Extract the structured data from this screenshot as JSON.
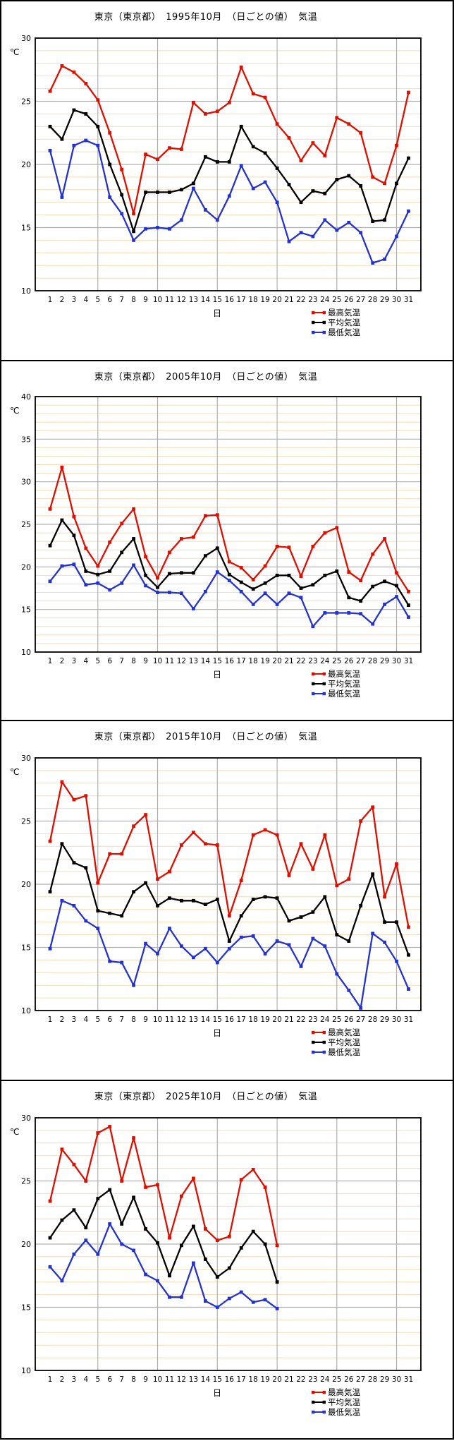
{
  "page": {
    "unit_label": "℃",
    "x_axis_label": "日"
  },
  "colors": {
    "max_temp": "#dd0f00",
    "avg_temp": "#000000",
    "min_temp": "#2333cc",
    "grid_minor": "#f7dcb6",
    "grid_major": "#b0b0b0",
    "plot_border": "#000000"
  },
  "legend": [
    {
      "label": "最高気温",
      "color": "#dd0f00"
    },
    {
      "label": "平均気温",
      "color": "#000000"
    },
    {
      "label": "最低気温",
      "color": "#2333cc"
    }
  ],
  "chart_data": [
    {
      "type": "line",
      "title": "東京（東京都）　1995年10月　（日ごとの値）　気温",
      "xlabel": "日",
      "ylabel": "℃",
      "ylim": [
        10,
        30
      ],
      "yticks": [
        10,
        15,
        20,
        25,
        30
      ],
      "x_start": 1,
      "x_tick_count": 31,
      "grid_v_days": [
        5,
        10,
        15,
        20,
        25,
        30
      ],
      "series": [
        {
          "name": "最高気温",
          "values": [
            25.8,
            27.8,
            27.3,
            26.4,
            25.1,
            22.5,
            19.6,
            16.1,
            20.8,
            20.4,
            21.3,
            21.2,
            24.9,
            24.0,
            24.2,
            24.9,
            27.7,
            25.6,
            25.3,
            23.2,
            22.1,
            20.3,
            21.7,
            20.7,
            23.7,
            23.2,
            22.5,
            19.0,
            18.5,
            21.5,
            25.7
          ]
        },
        {
          "name": "平均気温",
          "values": [
            23.0,
            22.0,
            24.3,
            24.0,
            23.0,
            20.0,
            17.6,
            14.7,
            17.8,
            17.8,
            17.8,
            18.0,
            18.5,
            20.6,
            20.2,
            20.2,
            23.0,
            21.4,
            20.9,
            19.7,
            18.4,
            17.0,
            17.9,
            17.7,
            18.8,
            19.1,
            18.3,
            15.5,
            15.6,
            18.5,
            20.5
          ]
        },
        {
          "name": "最低気温",
          "values": [
            21.1,
            17.4,
            21.5,
            21.9,
            21.5,
            17.4,
            16.1,
            14.0,
            14.9,
            15.0,
            14.9,
            15.6,
            18.1,
            16.4,
            15.6,
            17.5,
            19.9,
            18.1,
            18.6,
            17.0,
            13.9,
            14.6,
            14.3,
            15.6,
            14.8,
            15.4,
            14.6,
            12.2,
            12.5,
            14.3,
            16.3
          ]
        }
      ]
    },
    {
      "type": "line",
      "title": "東京（東京都）　2005年10月　（日ごとの値）　気温",
      "xlabel": "日",
      "ylabel": "℃",
      "ylim": [
        10,
        40
      ],
      "yticks": [
        10,
        15,
        20,
        25,
        30,
        35,
        40
      ],
      "x_start": 1,
      "x_tick_count": 31,
      "grid_v_days": [
        5,
        10,
        15,
        20,
        25,
        30
      ],
      "series": [
        {
          "name": "最高気温",
          "values": [
            26.8,
            31.7,
            25.9,
            22.2,
            20.1,
            22.9,
            25.1,
            26.8,
            21.2,
            18.7,
            21.7,
            23.3,
            23.5,
            26.0,
            26.1,
            20.6,
            19.9,
            18.5,
            20.1,
            22.4,
            22.3,
            18.9,
            22.4,
            24.0,
            24.6,
            19.4,
            18.4,
            21.5,
            23.3,
            19.3,
            17.1
          ]
        },
        {
          "name": "平均気温",
          "values": [
            22.5,
            25.5,
            23.7,
            19.5,
            19.1,
            19.5,
            21.7,
            23.3,
            19.0,
            17.6,
            19.2,
            19.3,
            19.3,
            21.3,
            22.2,
            19.1,
            18.2,
            17.4,
            18.1,
            19.0,
            19.0,
            17.5,
            17.9,
            19.0,
            19.5,
            16.4,
            16.0,
            17.7,
            18.3,
            17.8,
            15.5
          ]
        },
        {
          "name": "最低気温",
          "values": [
            18.3,
            20.1,
            20.3,
            17.9,
            18.1,
            17.3,
            18.1,
            20.2,
            17.8,
            17.0,
            17.0,
            16.9,
            15.1,
            17.1,
            19.4,
            18.4,
            17.1,
            15.6,
            16.9,
            15.6,
            16.9,
            16.4,
            13.0,
            14.6,
            14.6,
            14.6,
            14.5,
            13.3,
            15.6,
            16.5,
            14.1
          ]
        }
      ]
    },
    {
      "type": "line",
      "title": "東京（東京都）　2015年10月　（日ごとの値）　気温",
      "xlabel": "日",
      "ylabel": "℃",
      "ylim": [
        10,
        30
      ],
      "yticks": [
        10,
        15,
        20,
        25,
        30
      ],
      "x_start": 1,
      "x_tick_count": 31,
      "grid_v_days": [
        5,
        10,
        15,
        20,
        25,
        30
      ],
      "series": [
        {
          "name": "最高気温",
          "values": [
            23.4,
            28.1,
            26.7,
            27.0,
            20.1,
            22.4,
            22.4,
            24.6,
            25.5,
            20.4,
            21.0,
            23.1,
            24.1,
            23.2,
            23.1,
            17.5,
            20.3,
            23.9,
            24.3,
            23.9,
            20.7,
            23.2,
            21.2,
            23.9,
            19.9,
            20.4,
            25.0,
            26.1,
            19.0,
            21.6,
            16.6
          ]
        },
        {
          "name": "平均気温",
          "values": [
            19.4,
            23.2,
            21.7,
            21.3,
            17.9,
            17.7,
            17.5,
            19.4,
            20.1,
            18.3,
            18.9,
            18.7,
            18.7,
            18.4,
            18.8,
            15.5,
            17.5,
            18.8,
            19.0,
            18.9,
            17.1,
            17.4,
            17.8,
            19.0,
            16.0,
            15.5,
            18.3,
            20.8,
            17.0,
            17.0,
            14.4
          ]
        },
        {
          "name": "最低気温",
          "values": [
            14.9,
            18.7,
            18.3,
            17.1,
            16.5,
            13.9,
            13.8,
            12.0,
            15.3,
            14.5,
            16.5,
            15.1,
            14.2,
            14.9,
            13.8,
            14.9,
            15.8,
            15.9,
            14.5,
            15.5,
            15.2,
            13.5,
            15.7,
            15.1,
            12.9,
            11.6,
            10.2,
            16.1,
            15.4,
            13.9,
            11.7
          ]
        }
      ]
    },
    {
      "type": "line",
      "title": "東京（東京都）　2025年10月　（日ごとの値）　気温",
      "xlabel": "日",
      "ylabel": "℃",
      "ylim": [
        10,
        30
      ],
      "yticks": [
        10,
        15,
        20,
        25,
        30
      ],
      "x_start": 1,
      "x_tick_count": 31,
      "grid_v_days": [
        5,
        10,
        15,
        20,
        25,
        30
      ],
      "series": [
        {
          "name": "最高気温",
          "values": [
            23.4,
            27.5,
            26.3,
            25.0,
            28.8,
            29.3,
            25.0,
            28.4,
            24.5,
            24.7,
            20.5,
            23.8,
            25.2,
            21.2,
            20.3,
            20.6,
            25.1,
            25.9,
            24.5,
            19.9
          ]
        },
        {
          "name": "平均気温",
          "values": [
            20.5,
            21.9,
            22.7,
            21.3,
            23.6,
            24.3,
            21.6,
            23.7,
            21.2,
            20.1,
            17.5,
            19.9,
            21.4,
            18.8,
            17.4,
            18.1,
            19.7,
            21.0,
            20.0,
            17.0
          ]
        },
        {
          "name": "最低気温",
          "values": [
            18.2,
            17.1,
            19.2,
            20.3,
            19.2,
            21.6,
            20.0,
            19.5,
            17.6,
            17.1,
            15.8,
            15.8,
            18.5,
            15.5,
            15.0,
            15.7,
            16.2,
            15.4,
            15.6,
            14.9
          ]
        }
      ]
    }
  ]
}
